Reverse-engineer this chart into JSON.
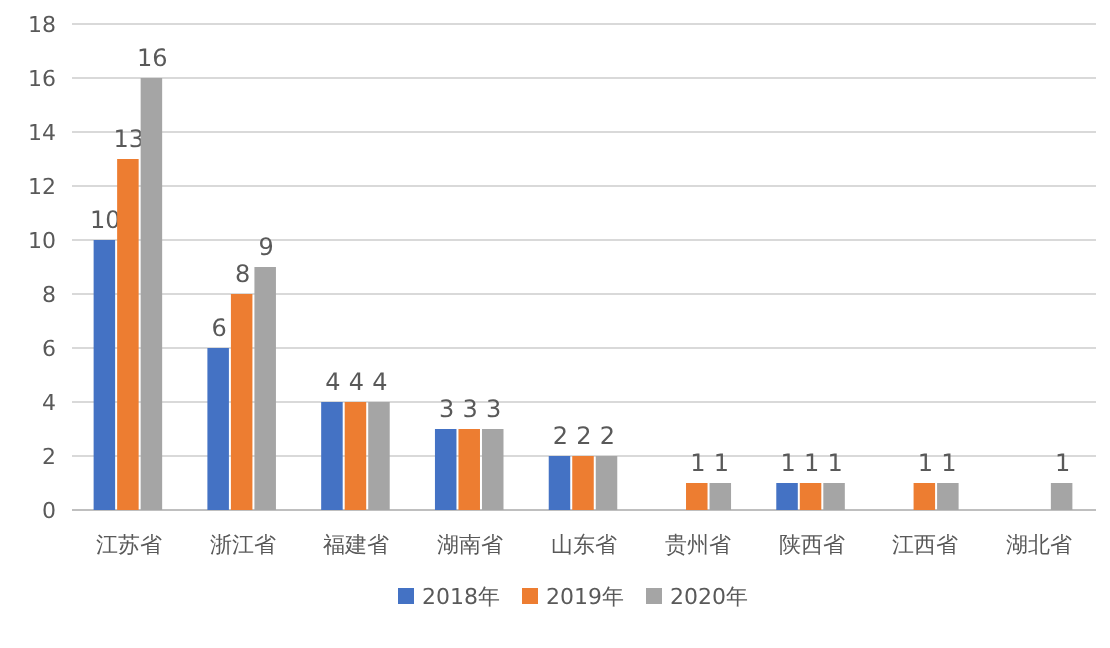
{
  "chart_data": {
    "type": "bar",
    "categories": [
      "江苏省",
      "浙江省",
      "福建省",
      "湖南省",
      "山东省",
      "贵州省",
      "陕西省",
      "江西省",
      "湖北省"
    ],
    "series": [
      {
        "name": "2018年",
        "color": "#4472c4",
        "values": [
          10,
          6,
          4,
          3,
          2,
          null,
          1,
          null,
          null
        ]
      },
      {
        "name": "2019年",
        "color": "#ed7d31",
        "values": [
          13,
          8,
          4,
          3,
          2,
          1,
          1,
          1,
          null
        ]
      },
      {
        "name": "2020年",
        "color": "#a5a5a5",
        "values": [
          16,
          9,
          4,
          3,
          2,
          1,
          1,
          1,
          1
        ]
      }
    ],
    "ylim": [
      0,
      18
    ],
    "yticks": [
      0,
      2,
      4,
      6,
      8,
      10,
      12,
      14,
      16,
      18
    ],
    "grid": "y",
    "legend": "bottom",
    "data_labels": true
  }
}
